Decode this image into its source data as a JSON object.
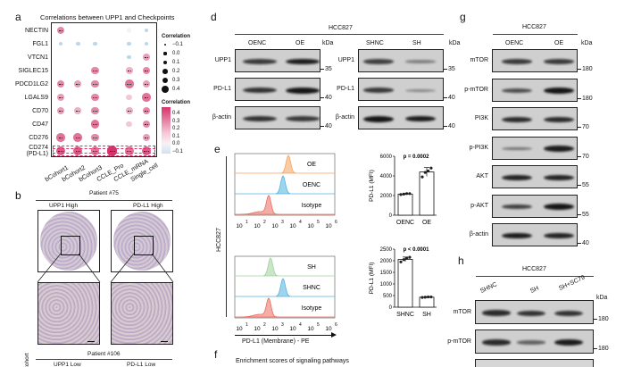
{
  "panel_labels": {
    "a": "a",
    "b": "b",
    "d": "d",
    "e": "e",
    "f": "f",
    "g": "g",
    "h": "h"
  },
  "panel_a": {
    "title": "Correlations between UPP1 and Checkpoints",
    "rows": [
      "NECTIN",
      "FGL1",
      "VTCN1",
      "SIGLEC15",
      "PDCD1LG2",
      "LGALS9",
      "CD70",
      "CD47",
      "CD276",
      "CD274\n(PD-L1)"
    ],
    "columns": [
      "bCohort1",
      "bCohort2",
      "bCohort3",
      "CCLE_Pro",
      "CCLE_mRNA",
      "Single_cell"
    ],
    "values": [
      [
        0.25,
        null,
        null,
        null,
        0.0,
        -0.05
      ],
      [
        -0.05,
        -0.05,
        -0.05,
        null,
        -0.05,
        -0.05
      ],
      [
        null,
        null,
        null,
        null,
        -0.05,
        0.2
      ],
      [
        null,
        null,
        0.25,
        null,
        0.15,
        0.25
      ],
      [
        0.25,
        0.2,
        0.25,
        null,
        0.3,
        0.2
      ],
      [
        0.2,
        null,
        0.25,
        null,
        0.1,
        0.3
      ],
      [
        0.2,
        0.15,
        0.25,
        null,
        0.15,
        0.25
      ],
      [
        null,
        null,
        0.3,
        null,
        0.1,
        0.25
      ],
      [
        0.3,
        0.3,
        0.25,
        null,
        null,
        0.2
      ],
      [
        0.35,
        0.35,
        0.3,
        0.45,
        0.3,
        0.35
      ]
    ],
    "highlighted_row": "CD274\n(PD-L1)",
    "size_legend_title": "Correlation",
    "size_legend": [
      "−0.1",
      "0.0",
      "0.1",
      "0.2",
      "0.3",
      "0.4"
    ],
    "color_legend_title": "Correlation",
    "color_legend": [
      "0.4",
      "0.3",
      "0.2",
      "0.1",
      "0.0",
      "−0.1"
    ],
    "colors": {
      "positive": "#d6336c",
      "negative": "#bcd7ec",
      "neutral": "#f7f2f4"
    }
  },
  "panel_b": {
    "top_patient": "Patient #75",
    "top_labels": [
      "UPP1 High",
      "PD-L1 High"
    ],
    "bottom_patient": "Patient #106",
    "bottom_labels": [
      "UPP1 Low",
      "PD-L1 Low"
    ],
    "side_label": "TMA Cohort"
  },
  "panel_d": {
    "cell_line": "HCC827",
    "kda": "kDa",
    "left_lanes": [
      "OENC",
      "OE"
    ],
    "right_lanes": [
      "SHNC",
      "SH"
    ],
    "rows": [
      "UPP1",
      "PD-L1",
      "β-actin"
    ],
    "markers": [
      "35",
      "40",
      "40"
    ],
    "left_bands": [
      [
        0.75,
        0.95
      ],
      [
        0.8,
        1.0
      ],
      [
        0.8,
        0.75
      ]
    ],
    "right_bands": [
      [
        0.7,
        0.25
      ],
      [
        0.75,
        0.2
      ],
      [
        1.0,
        0.95
      ]
    ]
  },
  "panel_e": {
    "side_label": "HCC827",
    "top_tracks": [
      {
        "label": "OE",
        "color": "#f5a25d",
        "peak": 3.6
      },
      {
        "label": "OENC",
        "color": "#4fb3e0",
        "peak": 3.3
      },
      {
        "label": "Isotype",
        "color": "#ec6a5e",
        "peak": 2.5
      }
    ],
    "bottom_tracks": [
      {
        "label": "SH",
        "color": "#9fd19a",
        "peak": 2.6
      },
      {
        "label": "SHNC",
        "color": "#4fb3e0",
        "peak": 3.3
      },
      {
        "label": "Isotype",
        "color": "#ec6a5e",
        "peak": 2.5
      }
    ],
    "x_ticks": [
      "1",
      "2",
      "3",
      "4",
      "5",
      "6"
    ],
    "x_tick_base": "10",
    "xlabel": "PD-L1 (Membrane) - PE",
    "chart_data": [
      {
        "type": "bar",
        "categories": [
          "OENC",
          "OE"
        ],
        "values": [
          2150,
          4400
        ],
        "points": [
          [
            2100,
            2150,
            2200,
            2200
          ],
          [
            3900,
            4350,
            4500,
            4800
          ]
        ],
        "ylabel": "PD-L1 (MFI)",
        "ylim": [
          0,
          6000
        ],
        "yticks": [
          "0",
          "2000",
          "4000",
          "6000"
        ],
        "annotation": "p = 0.0002"
      },
      {
        "type": "bar",
        "categories": [
          "SHNC",
          "SH"
        ],
        "values": [
          2060,
          430
        ],
        "points": [
          [
            1950,
            2050,
            2100,
            2150
          ],
          [
            420,
            430,
            440,
            440
          ]
        ],
        "ylabel": "PD-L1 (MFI)",
        "ylim": [
          0,
          2500
        ],
        "yticks": [
          "0",
          "500",
          "1000",
          "1500",
          "2000",
          "2500"
        ],
        "annotation": "p < 0.0001"
      }
    ]
  },
  "panel_f": {
    "title": "Enrichment scores of signaling pathways"
  },
  "panel_g": {
    "cell_line": "HCC827",
    "kda": "kDa",
    "lanes": [
      "OENC",
      "OE"
    ],
    "rows": [
      "mTOR",
      "p-mTOR",
      "PI3K",
      "p-PI3K",
      "AKT",
      "p-AKT",
      "β-actin"
    ],
    "markers": [
      "180",
      "180",
      "70",
      "70",
      "55",
      "55",
      "40"
    ],
    "bands": [
      [
        0.75,
        0.75
      ],
      [
        0.6,
        1.0
      ],
      [
        0.85,
        0.85
      ],
      [
        0.35,
        0.95
      ],
      [
        0.9,
        0.9
      ],
      [
        0.7,
        1.0
      ],
      [
        0.95,
        0.9
      ]
    ]
  },
  "panel_h": {
    "cell_line": "HCC827",
    "kda": "kDa",
    "lanes": [
      "SHNC",
      "SH",
      "SH+SC79"
    ],
    "rows": [
      "mTOR",
      "p-mTOR"
    ],
    "markers": [
      "180",
      "180"
    ],
    "bands": [
      [
        0.85,
        0.8,
        0.8
      ],
      [
        0.85,
        0.45,
        0.95
      ]
    ]
  }
}
